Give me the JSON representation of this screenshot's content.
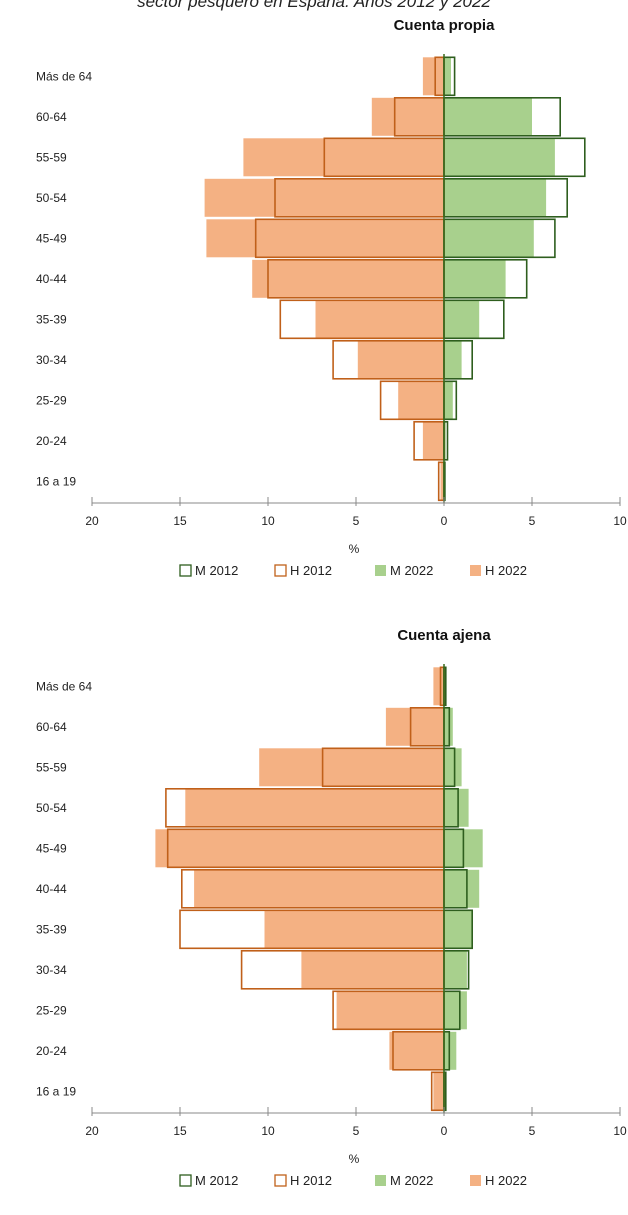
{
  "page": {
    "title": "sector pesquero en España. Años 2012 y 2022"
  },
  "colors": {
    "m2012_stroke": "#2e5e1e",
    "h2012_stroke": "#c0601a",
    "m2022_fill": "#a8d08d",
    "h2022_fill": "#f4b183"
  },
  "chart_data": [
    {
      "type": "bar",
      "title": "Cuenta propia",
      "xlabel": "%",
      "categories": [
        "Más de 64",
        "60-64",
        "55-59",
        "50-54",
        "45-49",
        "40-44",
        "35-39",
        "30-34",
        "25-29",
        "20-24",
        "16 a 19"
      ],
      "xlim_left": [
        20,
        0
      ],
      "xlim_right": [
        0,
        10
      ],
      "x_ticks_left": [
        "20",
        "15",
        "10",
        "5",
        "0"
      ],
      "x_ticks_right": [
        "5",
        "10"
      ],
      "legend": [
        "M 2012",
        "H 2012",
        "M 2022",
        "H 2022"
      ],
      "series": [
        {
          "name": "H 2022",
          "side": "left",
          "style": "fill",
          "values": [
            1.2,
            4.1,
            11.4,
            13.6,
            13.5,
            10.9,
            7.3,
            4.9,
            2.6,
            1.2,
            0.2
          ]
        },
        {
          "name": "H 2012",
          "side": "left",
          "style": "outline",
          "values": [
            0.5,
            2.8,
            6.8,
            9.6,
            10.7,
            10.0,
            9.3,
            6.3,
            3.6,
            1.7,
            0.3
          ]
        },
        {
          "name": "M 2022",
          "side": "right",
          "style": "fill",
          "values": [
            0.4,
            5.0,
            6.3,
            5.8,
            5.1,
            3.5,
            2.0,
            1.0,
            0.5,
            0.1,
            0.05
          ]
        },
        {
          "name": "M 2012",
          "side": "right",
          "style": "outline",
          "values": [
            0.6,
            6.6,
            8.0,
            7.0,
            6.3,
            4.7,
            3.4,
            1.6,
            0.7,
            0.2,
            0.05
          ]
        }
      ]
    },
    {
      "type": "bar",
      "title": "Cuenta ajena",
      "xlabel": "%",
      "categories": [
        "Más de 64",
        "60-64",
        "55-59",
        "50-54",
        "45-49",
        "40-44",
        "35-39",
        "30-34",
        "25-29",
        "20-24",
        "16 a 19"
      ],
      "xlim_left": [
        20,
        0
      ],
      "xlim_right": [
        0,
        10
      ],
      "x_ticks_left": [
        "20",
        "15",
        "10",
        "5",
        "0"
      ],
      "x_ticks_right": [
        "5",
        "10"
      ],
      "legend": [
        "M 2012",
        "H 2012",
        "M 2022",
        "H 2022"
      ],
      "series": [
        {
          "name": "H 2022",
          "side": "left",
          "style": "fill",
          "values": [
            0.6,
            3.3,
            10.5,
            14.7,
            16.4,
            14.2,
            10.2,
            8.1,
            6.1,
            3.1,
            0.6
          ]
        },
        {
          "name": "H 2012",
          "side": "left",
          "style": "outline",
          "values": [
            0.2,
            1.9,
            6.9,
            15.8,
            15.7,
            14.9,
            15.0,
            11.5,
            6.3,
            2.9,
            0.7
          ]
        },
        {
          "name": "M 2022",
          "side": "right",
          "style": "fill",
          "values": [
            0.1,
            0.5,
            1.0,
            1.4,
            2.2,
            2.0,
            1.6,
            1.3,
            1.3,
            0.7,
            0.1
          ]
        },
        {
          "name": "M 2012",
          "side": "right",
          "style": "outline",
          "values": [
            0.1,
            0.3,
            0.6,
            0.8,
            1.1,
            1.3,
            1.6,
            1.4,
            0.9,
            0.3,
            0.1
          ]
        }
      ]
    }
  ]
}
